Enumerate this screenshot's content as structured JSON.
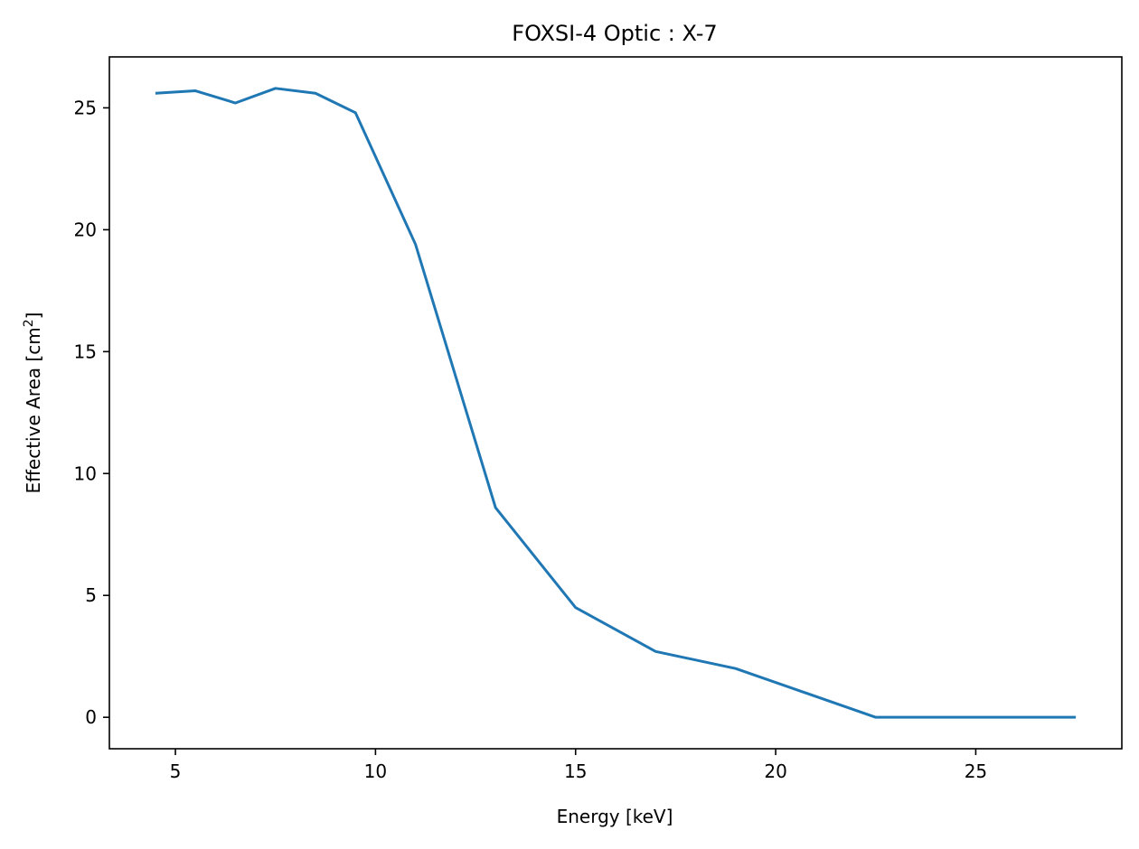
{
  "chart_data": {
    "type": "line",
    "title": "FOXSI-4 Optic : X-7",
    "xlabel": "Energy [keV]",
    "ylabel": {
      "prefix": "Effective Area [cm",
      "superscript": "2",
      "suffix": "]"
    },
    "xlim": [
      3.35,
      28.65
    ],
    "ylim": [
      -1.29,
      27.09
    ],
    "x_ticks": [
      5,
      10,
      15,
      20,
      25
    ],
    "y_ticks": [
      0,
      5,
      10,
      15,
      20,
      25
    ],
    "grid": false,
    "series": [
      {
        "color": "#1f77b4",
        "x": [
          4.5,
          5.5,
          6.5,
          7.5,
          8.5,
          9.5,
          11,
          13,
          15,
          17,
          19,
          22.5,
          27.5
        ],
        "y": [
          25.6,
          25.7,
          25.2,
          25.8,
          25.6,
          24.8,
          19.4,
          8.6,
          4.5,
          2.7,
          2.0,
          0.0,
          0.0
        ]
      }
    ]
  }
}
